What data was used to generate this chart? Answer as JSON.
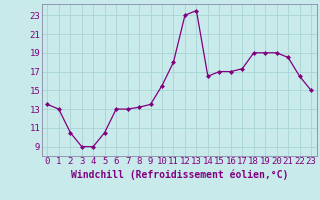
{
  "x": [
    0,
    1,
    2,
    3,
    4,
    5,
    6,
    7,
    8,
    9,
    10,
    11,
    12,
    13,
    14,
    15,
    16,
    17,
    18,
    19,
    20,
    21,
    22,
    23
  ],
  "y": [
    13.5,
    13.0,
    10.5,
    9.0,
    9.0,
    10.5,
    13.0,
    13.0,
    13.2,
    13.5,
    15.5,
    18.0,
    23.0,
    23.5,
    16.5,
    17.0,
    17.0,
    17.3,
    19.0,
    19.0,
    19.0,
    18.5,
    16.5,
    15.0
  ],
  "line_color": "#800080",
  "marker_color": "#800080",
  "bg_color": "#c8eaea",
  "grid_color": "#a8d4d4",
  "border_color": "#8888aa",
  "xlabel": "Windchill (Refroidissement éolien,°C)",
  "xlabel_fontsize": 7.0,
  "tick_fontsize": 6.5,
  "tick_color": "#800080",
  "xlim": [
    -0.5,
    23.5
  ],
  "ylim": [
    8.0,
    24.2
  ],
  "yticks": [
    9,
    11,
    13,
    15,
    17,
    19,
    21,
    23
  ],
  "xticks": [
    0,
    1,
    2,
    3,
    4,
    5,
    6,
    7,
    8,
    9,
    10,
    11,
    12,
    13,
    14,
    15,
    16,
    17,
    18,
    19,
    20,
    21,
    22,
    23
  ]
}
